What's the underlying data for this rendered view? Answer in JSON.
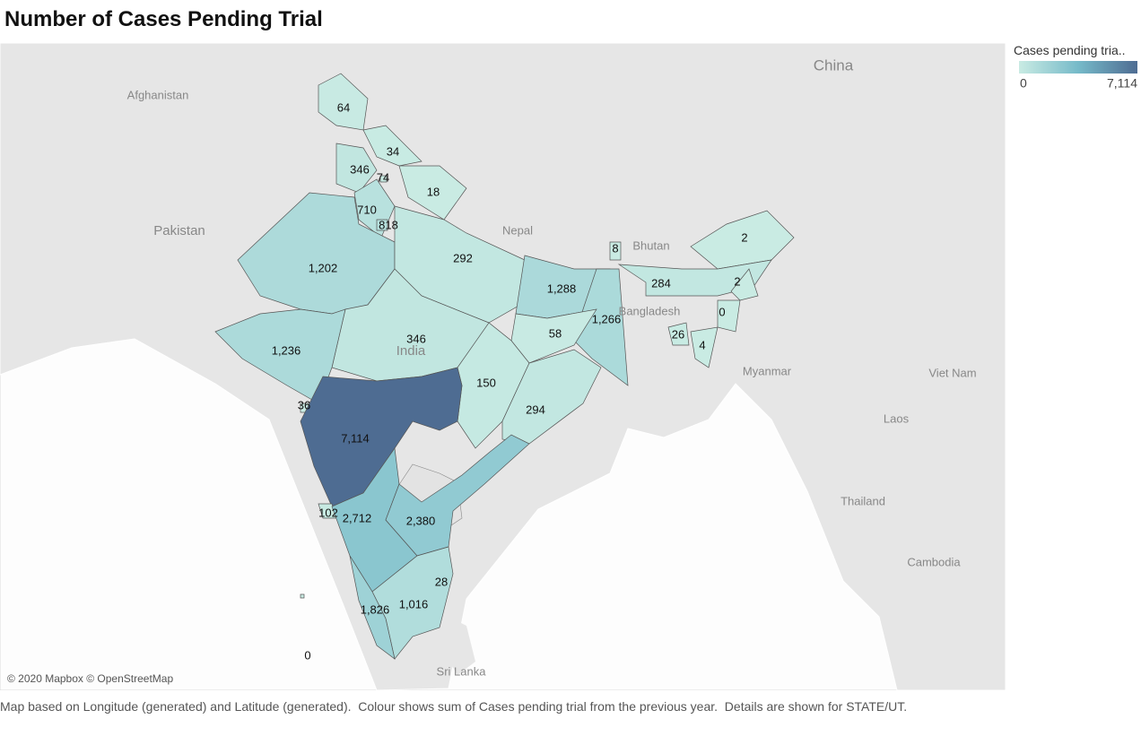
{
  "title": "Number of Cases Pending Trial",
  "chart_data": {
    "type": "choropleth",
    "values": [
      64,
      34,
      346,
      74,
      18,
      710,
      818,
      1202,
      292,
      1288,
      1266,
      58,
      346,
      1236,
      150,
      294,
      36,
      7114,
      102,
      2712,
      2380,
      28,
      1016,
      1826,
      0,
      8,
      2,
      284,
      2,
      0,
      26,
      4
    ],
    "value_labels": [
      "64",
      "34",
      "346",
      "74",
      "18",
      "710",
      "818",
      "1,202",
      "292",
      "1,288",
      "1,266",
      "58",
      "346",
      "1,236",
      "150",
      "294",
      "36",
      "7,114",
      "102",
      "2,712",
      "2,380",
      "28",
      "1,016",
      "1,826",
      "0",
      "8",
      "2",
      "284",
      "2",
      "0",
      "26",
      "4"
    ],
    "colors": [
      "#c9ebe3",
      "#76bac9",
      "#4e6c92"
    ],
    "legend": {
      "title": "Cases pending tria..",
      "ticks": [
        0,
        {
          "value": 7114,
          "label": "7,114"
        }
      ]
    }
  },
  "map_labels": [
    "China",
    "Afghanistan",
    "Pakistan",
    "Nepal",
    "Bhutan",
    "Bangladesh",
    "India",
    "Myanmar",
    "Viet Nam",
    "Laos",
    "Thailand",
    "Cambodia",
    "Sri Lanka"
  ],
  "attribution": "© 2020 Mapbox © OpenStreetMap",
  "caption": "Map based on Longitude (generated) and Latitude (generated).  Colour shows sum of Cases pending trial from the previous year.  Details are shown for STATE/UT."
}
